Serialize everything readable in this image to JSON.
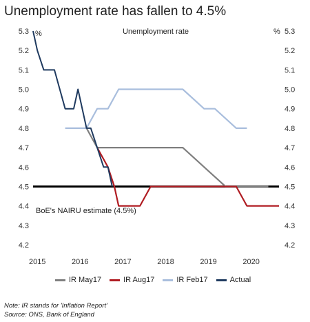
{
  "title": "Unemployment rate has fallen to 4.5%",
  "notes": [
    "Note: IR stands for 'Inflation Report'",
    "Source: ONS, Bank of England"
  ],
  "chart_data": {
    "type": "line",
    "chart_label": "Unemployment rate",
    "ylim": [
      4.2,
      5.3
    ],
    "yticks": [
      "4.2",
      "4.3",
      "4.4",
      "4.5",
      "4.6",
      "4.7",
      "4.8",
      "4.9",
      "5.0",
      "5.1",
      "5.2",
      "5.3"
    ],
    "y_unit_label": "%",
    "xlim": [
      2015.0,
      2020.75
    ],
    "x_ticks": [
      "2015",
      "2016",
      "2017",
      "2018",
      "2019",
      "2020"
    ],
    "grid": false,
    "nairu": {
      "label": "BoE's NAIRU estimate (4.5%)",
      "value": 4.5,
      "color": "#000000"
    },
    "series": [
      {
        "name": "IR May17",
        "color": "#7f7f7f",
        "x": [
          2016.25,
          2016.5,
          2017.0,
          2018.5,
          2019.0,
          2019.5,
          2020.5
        ],
        "y": [
          4.8,
          4.7,
          4.7,
          4.7,
          4.6,
          4.5,
          4.5
        ]
      },
      {
        "name": "IR Aug17",
        "color": "#b01c22",
        "x": [
          2016.5,
          2016.75,
          2016.9,
          2017.0,
          2017.5,
          2017.75,
          2019.25,
          2019.75,
          2020.0,
          2020.75
        ],
        "y": [
          4.7,
          4.6,
          4.5,
          4.4,
          4.4,
          4.5,
          4.5,
          4.5,
          4.4,
          4.4
        ]
      },
      {
        "name": "IR Feb17",
        "color": "#a9bedd",
        "x": [
          2015.75,
          2016.25,
          2016.5,
          2016.75,
          2017.0,
          2017.25,
          2018.5,
          2019.0,
          2019.25,
          2019.75,
          2020.0
        ],
        "y": [
          4.8,
          4.8,
          4.9,
          4.9,
          5.0,
          5.0,
          5.0,
          4.9,
          4.9,
          4.8,
          4.8
        ]
      },
      {
        "name": "Actual",
        "color": "#1f3a5f",
        "step": true,
        "x": [
          2015.0,
          2015.1,
          2015.25,
          2015.5,
          2015.75,
          2015.95,
          2016.05,
          2016.25,
          2016.35,
          2016.5,
          2016.65,
          2016.75,
          2016.85
        ],
        "y": [
          5.3,
          5.2,
          5.1,
          5.1,
          4.9,
          4.9,
          5.0,
          4.8,
          4.8,
          4.7,
          4.6,
          4.6,
          4.5
        ]
      }
    ]
  }
}
